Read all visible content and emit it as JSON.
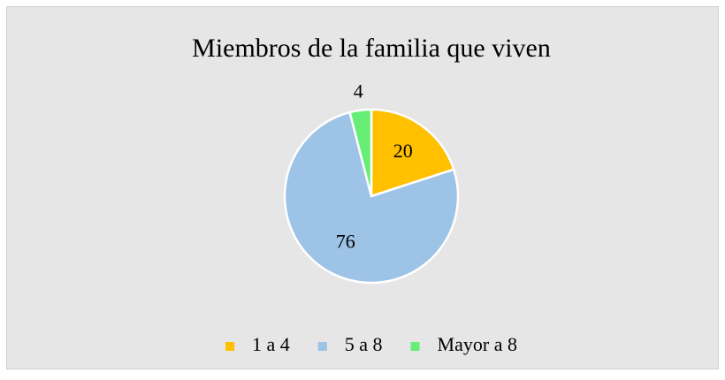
{
  "chart_data": {
    "type": "pie",
    "title": "Miembros de la familia que viven",
    "categories": [
      "1 a 4",
      "5 a 8",
      "Mayor a 8"
    ],
    "values": [
      20,
      76,
      4
    ],
    "colors": [
      "#ffc000",
      "#9dc3e6",
      "#66ee77"
    ],
    "legend": "bottom"
  }
}
